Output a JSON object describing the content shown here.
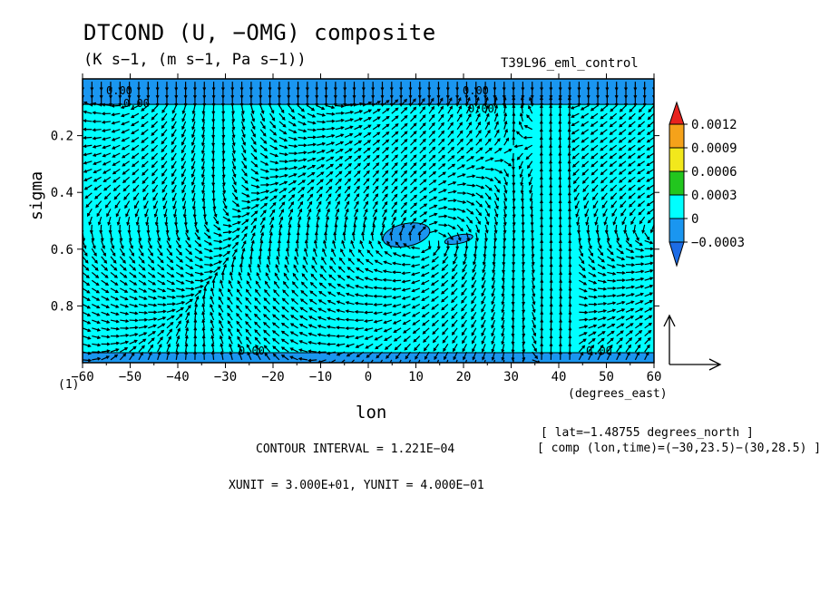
{
  "header": {
    "title": "DTCOND (U, −OMG) composite",
    "units": "(K s−1, (m s−1, Pa s−1))",
    "experiment": "T39L96_eml_control"
  },
  "axes": {
    "x_label": "lon",
    "x_units": "(degrees_east)",
    "y_label": "sigma",
    "y_units": "(1)",
    "x_ticks": [
      "−60",
      "−50",
      "−40",
      "−30",
      "−20",
      "−10",
      "0",
      "10",
      "20",
      "30",
      "40",
      "50",
      "60"
    ],
    "y_ticks": [
      "0.2",
      "0.4",
      "0.6",
      "0.8"
    ]
  },
  "info": {
    "lat": "[ lat=−1.48755 degrees_north ]",
    "comp": "[ comp (lon,time)=(−30,23.5)−(30,28.5) ]",
    "contour_interval": "CONTOUR INTERVAL = 1.221E−04",
    "vector_units": "XUNIT = 3.000E+01, YUNIT = 4.000E−01"
  },
  "contour_labels": [
    "0.00",
    "0.00",
    "0.00",
    "0.00",
    "0.00",
    "0.00"
  ],
  "colorbar": {
    "labels": [
      "0.0012",
      "0.0009",
      "0.0006",
      "0.0003",
      "0",
      "−0.0003"
    ],
    "colors": [
      "#e8231e",
      "#f5a21a",
      "#f2e81c",
      "#22c61e",
      "#00ffff",
      "#1a96f0",
      "#1c6ce6"
    ]
  },
  "chart_data": {
    "type": "contour+vector",
    "title": "DTCOND (U, −OMG) composite",
    "xlabel": "lon",
    "ylabel": "sigma",
    "xlim": [
      -60,
      60
    ],
    "ylim": [
      1.0,
      0.0
    ],
    "y_reversed": true,
    "x_ticks": [
      -60,
      -50,
      -40,
      -30,
      -20,
      -10,
      0,
      10,
      20,
      30,
      40,
      50,
      60
    ],
    "y_ticks": [
      0.2,
      0.4,
      0.6,
      0.8
    ],
    "colorbar_levels": [
      -0.0003,
      0,
      0.0003,
      0.0006,
      0.0009,
      0.0012
    ],
    "background_color": "#00ffff",
    "negative_regions": [
      {
        "name": "top band",
        "sigma_range": [
          0.0,
          0.09
        ]
      },
      {
        "name": "bottom band",
        "sigma_range": [
          0.965,
          1.0
        ]
      },
      {
        "name": "patch",
        "lon_range": [
          3,
          13
        ],
        "sigma_range": [
          0.51,
          0.59
        ]
      },
      {
        "name": "patch",
        "lon_range": [
          16,
          22
        ],
        "sigma_range": [
          0.55,
          0.58
        ]
      }
    ],
    "vector_reference": {
      "xunit": 30.0,
      "yunit": 0.4
    }
  }
}
